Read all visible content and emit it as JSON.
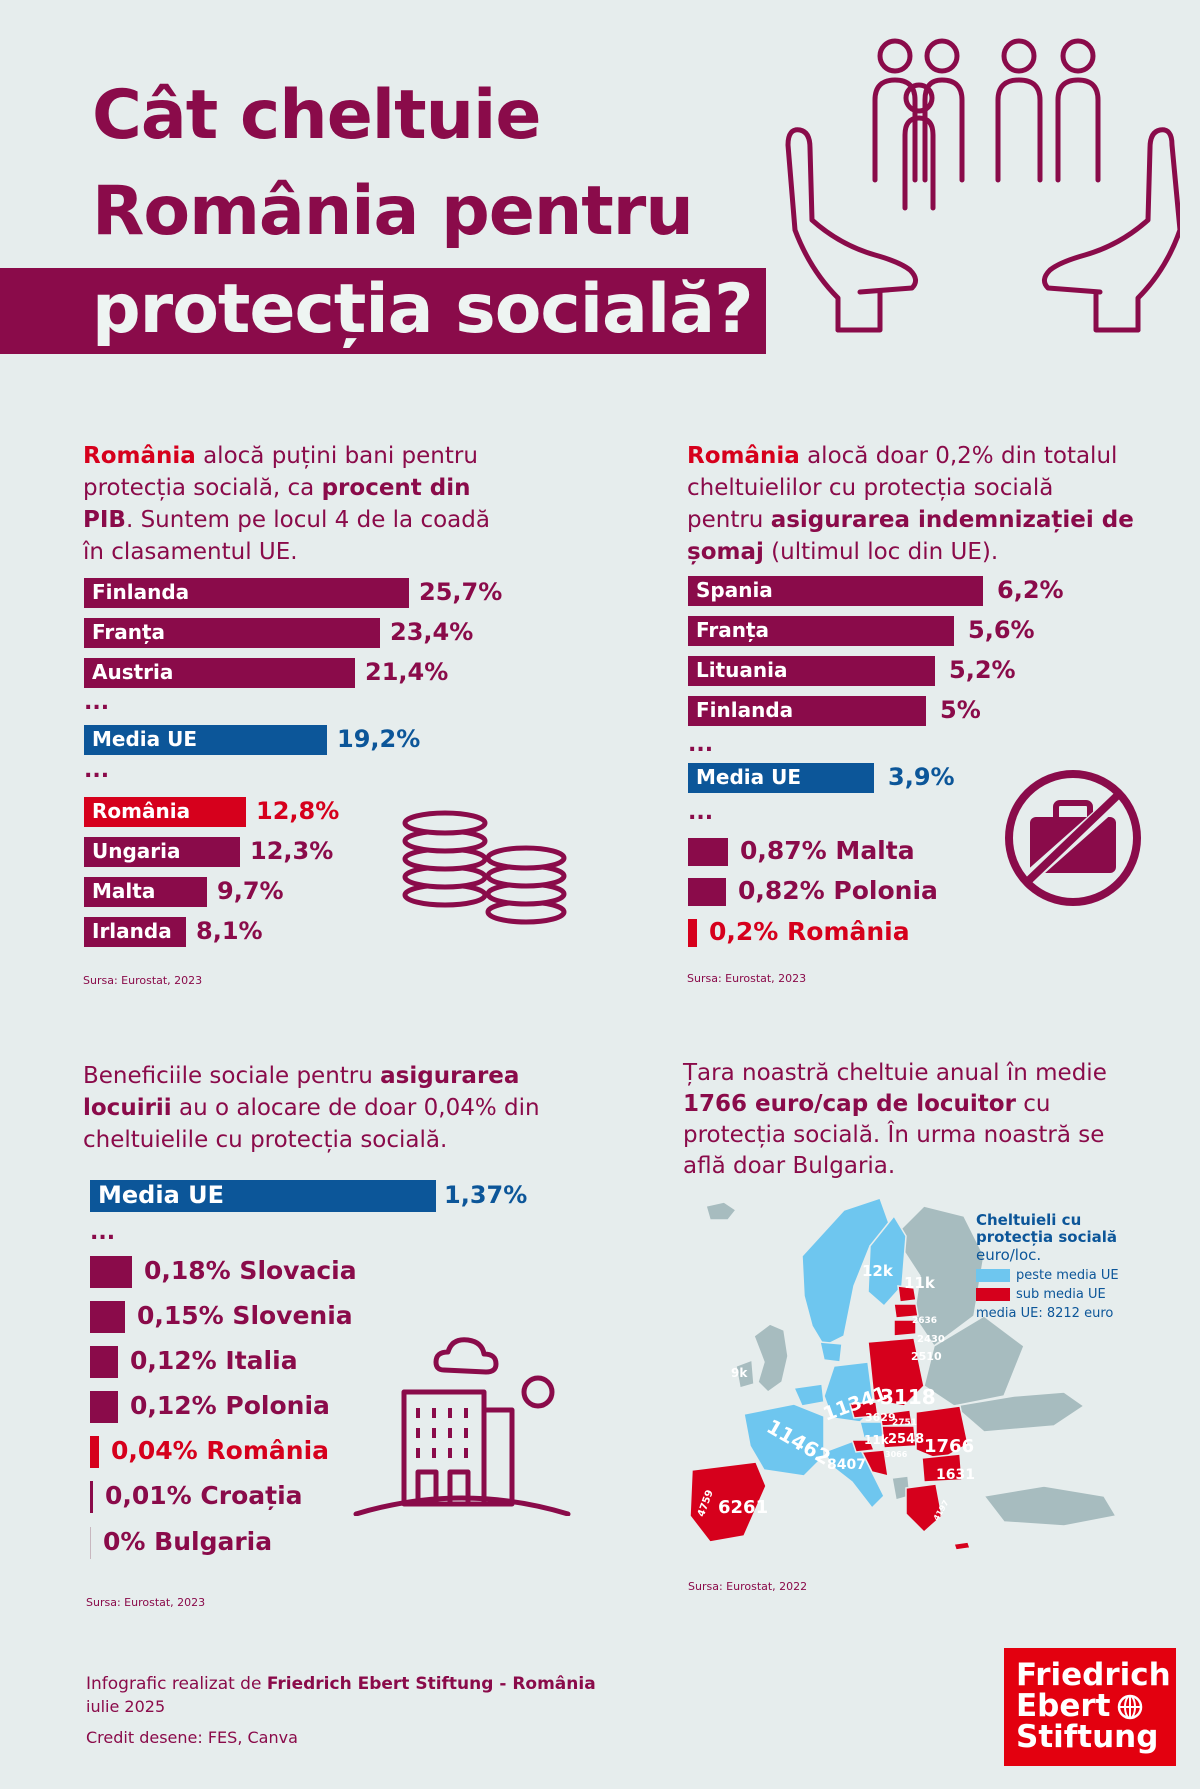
{
  "title": {
    "line1": "Cât cheltuie",
    "line2": "România pentru",
    "line3": "protecția socială?"
  },
  "colors": {
    "primary": "#8a0b4a",
    "blue": "#0c5699",
    "red": "#d6001c",
    "light_blue": "#6ec6ef",
    "background": "#e6eded"
  },
  "section1": {
    "intro_parts": [
      "România",
      " alocă puțini bani pentru protecția socială, ca ",
      "procent din PIB",
      ". Suntem pe locul 4 de la coadă în clasamentul UE."
    ],
    "ellipsis": "...",
    "source": "Sursa: Eurostat, 2023"
  },
  "section2": {
    "intro_parts": [
      "România",
      " alocă doar 0,2% din totalul cheltuielilor cu protecția socială pentru ",
      "asigurarea indemnizației de șomaj",
      " (ultimul loc din UE)."
    ],
    "ellipsis": "...",
    "source": "Sursa: Eurostat, 2023"
  },
  "section3": {
    "intro_parts": [
      "Beneficiile sociale pentru ",
      "asigurarea locuirii",
      " au o alocare de doar 0,04% din cheltuielile cu protecția socială."
    ],
    "ellipsis": "...",
    "source": "Sursa: Eurostat, 2023"
  },
  "section4": {
    "intro_parts": [
      "Țara noastră cheltuie anual în medie ",
      "1766 euro/cap de locuitor",
      " cu protecția socială. În urma noastră se află doar Bulgaria."
    ],
    "legend": {
      "title": "Cheltuieli cu protecția socială",
      "subtitle": "euro/loc.",
      "above": "peste media UE",
      "below": "sub media UE",
      "average": "media UE: 8212 euro"
    },
    "source": "Sursa: Eurostat, 2022"
  },
  "chart_data": [
    {
      "type": "bar",
      "title": "Cheltuieli cu protecția socială, % din PIB",
      "categories": [
        "Finlanda",
        "Franța",
        "Austria",
        "Media UE",
        "România",
        "Ungaria",
        "Malta",
        "Irlanda"
      ],
      "values": [
        25.7,
        23.4,
        21.4,
        19.2,
        12.8,
        12.3,
        9.7,
        8.1
      ],
      "labels": [
        "25,7%",
        "23,4%",
        "21,4%",
        "19,2%",
        "12,8%",
        "12,3%",
        "9,7%",
        "8,1%"
      ],
      "highlight": {
        "Media UE": "blue",
        "România": "red"
      },
      "gap_after": [
        2,
        3
      ]
    },
    {
      "type": "bar",
      "title": "Asigurarea indemnizației de șomaj, % din cheltuielile cu protecția socială",
      "categories": [
        "Spania",
        "Franța",
        "Lituania",
        "Finlanda",
        "Media UE",
        "Malta",
        "Polonia",
        "România"
      ],
      "values": [
        6.2,
        5.6,
        5.2,
        5.0,
        3.9,
        0.87,
        0.82,
        0.2
      ],
      "labels": [
        "6,2%",
        "5,6%",
        "5,2%",
        "5%",
        "3,9%",
        "0,87%",
        "0,82%",
        "0,2%"
      ],
      "highlight": {
        "Media UE": "blue",
        "România": "red"
      },
      "gap_after": [
        3,
        4
      ]
    },
    {
      "type": "bar",
      "title": "Asigurarea locuirii, % din cheltuielile cu protecția socială",
      "categories": [
        "Media UE",
        "Slovacia",
        "Slovenia",
        "Italia",
        "Polonia",
        "România",
        "Croația",
        "Bulgaria"
      ],
      "values": [
        1.37,
        0.18,
        0.15,
        0.12,
        0.12,
        0.04,
        0.01,
        0
      ],
      "labels": [
        "1,37%",
        "0,18%",
        "0,15%",
        "0,12%",
        "0,12%",
        "0,04%",
        "0,01%",
        "0%"
      ],
      "highlight": {
        "Media UE": "blue",
        "România": "red"
      },
      "gap_after": [
        0
      ]
    },
    {
      "type": "map",
      "title": "Cheltuieli cu protecția socială euro/loc.",
      "map_labels": [
        "12k",
        "11k",
        "9k",
        "11341",
        "3118",
        "3629",
        "11k",
        "11462",
        "8407",
        "2548",
        "1766",
        "1631",
        "6261",
        "2636",
        "2430",
        "2510",
        "2751",
        "3066",
        "4759",
        "4197"
      ]
    }
  ],
  "footer": {
    "line1_prefix": "Infografic realizat de ",
    "line1_bold": "Friedrich Ebert Stiftung - România",
    "line2": "iulie 2025",
    "line3": "Credit desene: FES, Canva"
  },
  "logo": {
    "line1": "Friedrich",
    "line2": "Ebert",
    "line3": "Stiftung"
  },
  "icons": [
    "family-hands-icon",
    "coins-icon",
    "no-briefcase-icon",
    "building-cloud-icon"
  ]
}
